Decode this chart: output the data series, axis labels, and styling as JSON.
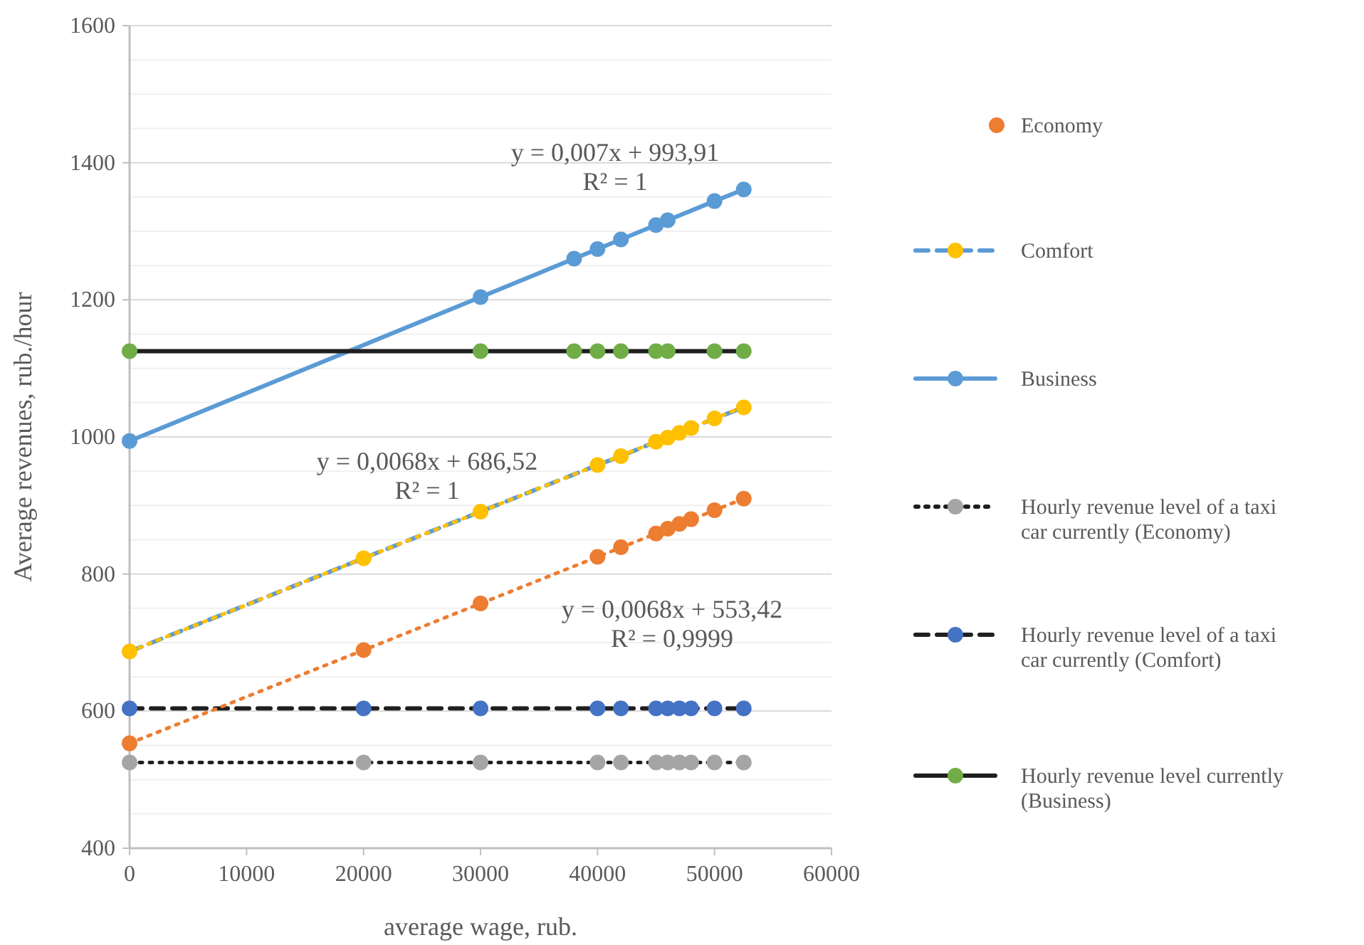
{
  "chart_data": {
    "type": "line",
    "xlabel": "average wage, rub.",
    "ylabel": "Average revenues, rub./hour",
    "xlim": [
      0,
      60000
    ],
    "xticks": [
      0,
      10000,
      20000,
      30000,
      40000,
      50000,
      60000
    ],
    "ylim": [
      400,
      1600
    ],
    "yticks": [
      400,
      {
        "value": 450,
        "label": null
      },
      {
        "value": 500,
        "label": null
      },
      {
        "value": 550,
        "label": null
      },
      600,
      {
        "value": 650,
        "label": null
      },
      {
        "value": 700,
        "label": null
      },
      {
        "value": 750,
        "label": null
      },
      800,
      {
        "value": 850,
        "label": null
      },
      {
        "value": 900,
        "label": null
      },
      {
        "value": 950,
        "label": null
      },
      1000,
      {
        "value": 1050,
        "label": null
      },
      {
        "value": 1100,
        "label": null
      },
      {
        "value": 1150,
        "label": null
      },
      1200,
      {
        "value": 1250,
        "label": null
      },
      {
        "value": 1300,
        "label": null
      },
      {
        "value": 1350,
        "label": null
      },
      1400,
      {
        "value": 1450,
        "label": null
      },
      {
        "value": 1500,
        "label": null
      },
      {
        "value": 1550,
        "label": null
      },
      1600
    ],
    "grid": "y",
    "legend": "right",
    "marker": "circle",
    "annotations": [
      "y = 0,007x + 993,91\nR² = 1",
      "y = 0,0068x + 686,52\nR² = 1",
      "y = 0,0068x + 553,42\nR² = 0,9999"
    ],
    "series": [
      {
        "name": "Economy",
        "type": "scatter",
        "color": "#ed7d31",
        "x": [
          0,
          20000,
          30000,
          40000,
          42000,
          45000,
          46000,
          47000,
          48000,
          50000,
          52500
        ],
        "values": [
          553,
          689,
          757,
          825,
          839,
          859,
          866,
          873,
          880,
          893,
          910
        ]
      },
      {
        "name": "Comfort",
        "type": "line",
        "line_style": "dashed",
        "color": "#5b9bd5",
        "colors": [
          "#ffc000",
          "#ffc000",
          "#ffc000",
          "#ffc000",
          "#ffc000",
          "#ffc000",
          "#ffc000",
          "#ffc000",
          "#ffc000",
          "#ffc000",
          "#ffc000"
        ],
        "x": [
          0,
          20000,
          30000,
          40000,
          42000,
          45000,
          46000,
          47000,
          48000,
          50000,
          52500
        ],
        "values": [
          687,
          823,
          891,
          959,
          972,
          993,
          999,
          1006,
          1013,
          1027,
          1043
        ]
      },
      {
        "name": "Business",
        "type": "line",
        "line_style": "solid",
        "color": "#5b9bd5",
        "x": [
          0,
          30000,
          38000,
          40000,
          42000,
          45000,
          46000,
          50000,
          52500
        ],
        "values": [
          994,
          1204,
          1260,
          1274,
          1288,
          1309,
          1316,
          1344,
          1361
        ]
      },
      {
        "name": "Hourly revenue level of a taxi car currently (Economy)",
        "type": "line",
        "line_style": "dotted",
        "color": "#1f1f1f",
        "colors": [
          "#a5a5a5",
          "#a5a5a5",
          "#a5a5a5",
          "#a5a5a5",
          "#a5a5a5",
          "#a5a5a5",
          "#a5a5a5",
          "#a5a5a5",
          "#a5a5a5",
          "#a5a5a5",
          "#a5a5a5"
        ],
        "x": [
          0,
          20000,
          30000,
          40000,
          42000,
          45000,
          46000,
          47000,
          48000,
          50000,
          52500
        ],
        "values": [
          525,
          525,
          525,
          525,
          525,
          525,
          525,
          525,
          525,
          525,
          525
        ]
      },
      {
        "name": "Hourly revenue level of a taxi car currently (Comfort)",
        "type": "line",
        "line_style": "dashed",
        "color": "#1f1f1f",
        "colors": [
          "#4472c4",
          "#4472c4",
          "#4472c4",
          "#4472c4",
          "#4472c4",
          "#4472c4",
          "#4472c4",
          "#4472c4",
          "#4472c4",
          "#4472c4",
          "#4472c4"
        ],
        "x": [
          0,
          20000,
          30000,
          40000,
          42000,
          45000,
          46000,
          47000,
          48000,
          50000,
          52500
        ],
        "values": [
          604,
          604,
          604,
          604,
          604,
          604,
          604,
          604,
          604,
          604,
          604
        ]
      },
      {
        "name": "Hourly revenue level currently (Business)",
        "type": "line",
        "line_style": "solid",
        "color": "#1f1f1f",
        "colors": [
          "#70ad47",
          "#70ad47",
          "#70ad47",
          "#70ad47",
          "#70ad47",
          "#70ad47",
          "#70ad47",
          "#70ad47",
          "#70ad47"
        ],
        "x": [
          0,
          30000,
          38000,
          40000,
          42000,
          45000,
          46000,
          50000,
          52500
        ],
        "values": [
          1125,
          1125,
          1125,
          1125,
          1125,
          1125,
          1125,
          1125,
          1125
        ]
      },
      {
        "type": "line",
        "line_style": "dotted",
        "marker": "none",
        "color": "#ed7d31",
        "x": [
          0,
          52500
        ],
        "values": [
          553,
          910
        ]
      },
      {
        "type": "line",
        "line_style": "dotted",
        "marker": "none",
        "color": "#ffc000",
        "x": [
          0,
          52500
        ],
        "values": [
          687,
          1044
        ]
      }
    ]
  }
}
